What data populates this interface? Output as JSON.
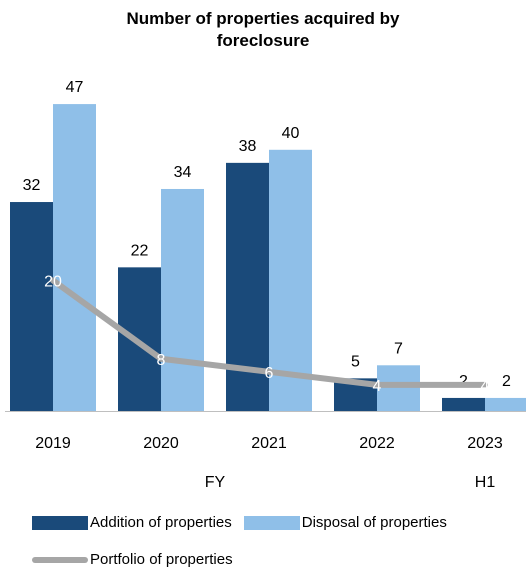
{
  "chart_data": {
    "type": "bar",
    "title": [
      "Number of properties acquired by",
      "foreclosure"
    ],
    "categories": [
      "2019",
      "2020",
      "2021",
      "2022",
      "2023"
    ],
    "group_labels": [
      {
        "label": "FY",
        "covers": [
          "2019",
          "2020",
          "2021",
          "2022"
        ]
      },
      {
        "label": "H1",
        "covers": [
          "2023"
        ]
      }
    ],
    "series": [
      {
        "name": "Addition of properties",
        "kind": "bar",
        "color": "#1a4a7a",
        "values": [
          32,
          22,
          38,
          5,
          2
        ]
      },
      {
        "name": "Disposal of properties",
        "kind": "bar",
        "color": "#8fbfe8",
        "values": [
          47,
          34,
          40,
          7,
          2
        ]
      },
      {
        "name": "Portfolio of properties",
        "kind": "line",
        "color": "#a6a6a6",
        "values": [
          20,
          8,
          6,
          4,
          4
        ]
      }
    ],
    "ylim": [
      0,
      49
    ],
    "grid": false,
    "legend_position": "bottom"
  }
}
